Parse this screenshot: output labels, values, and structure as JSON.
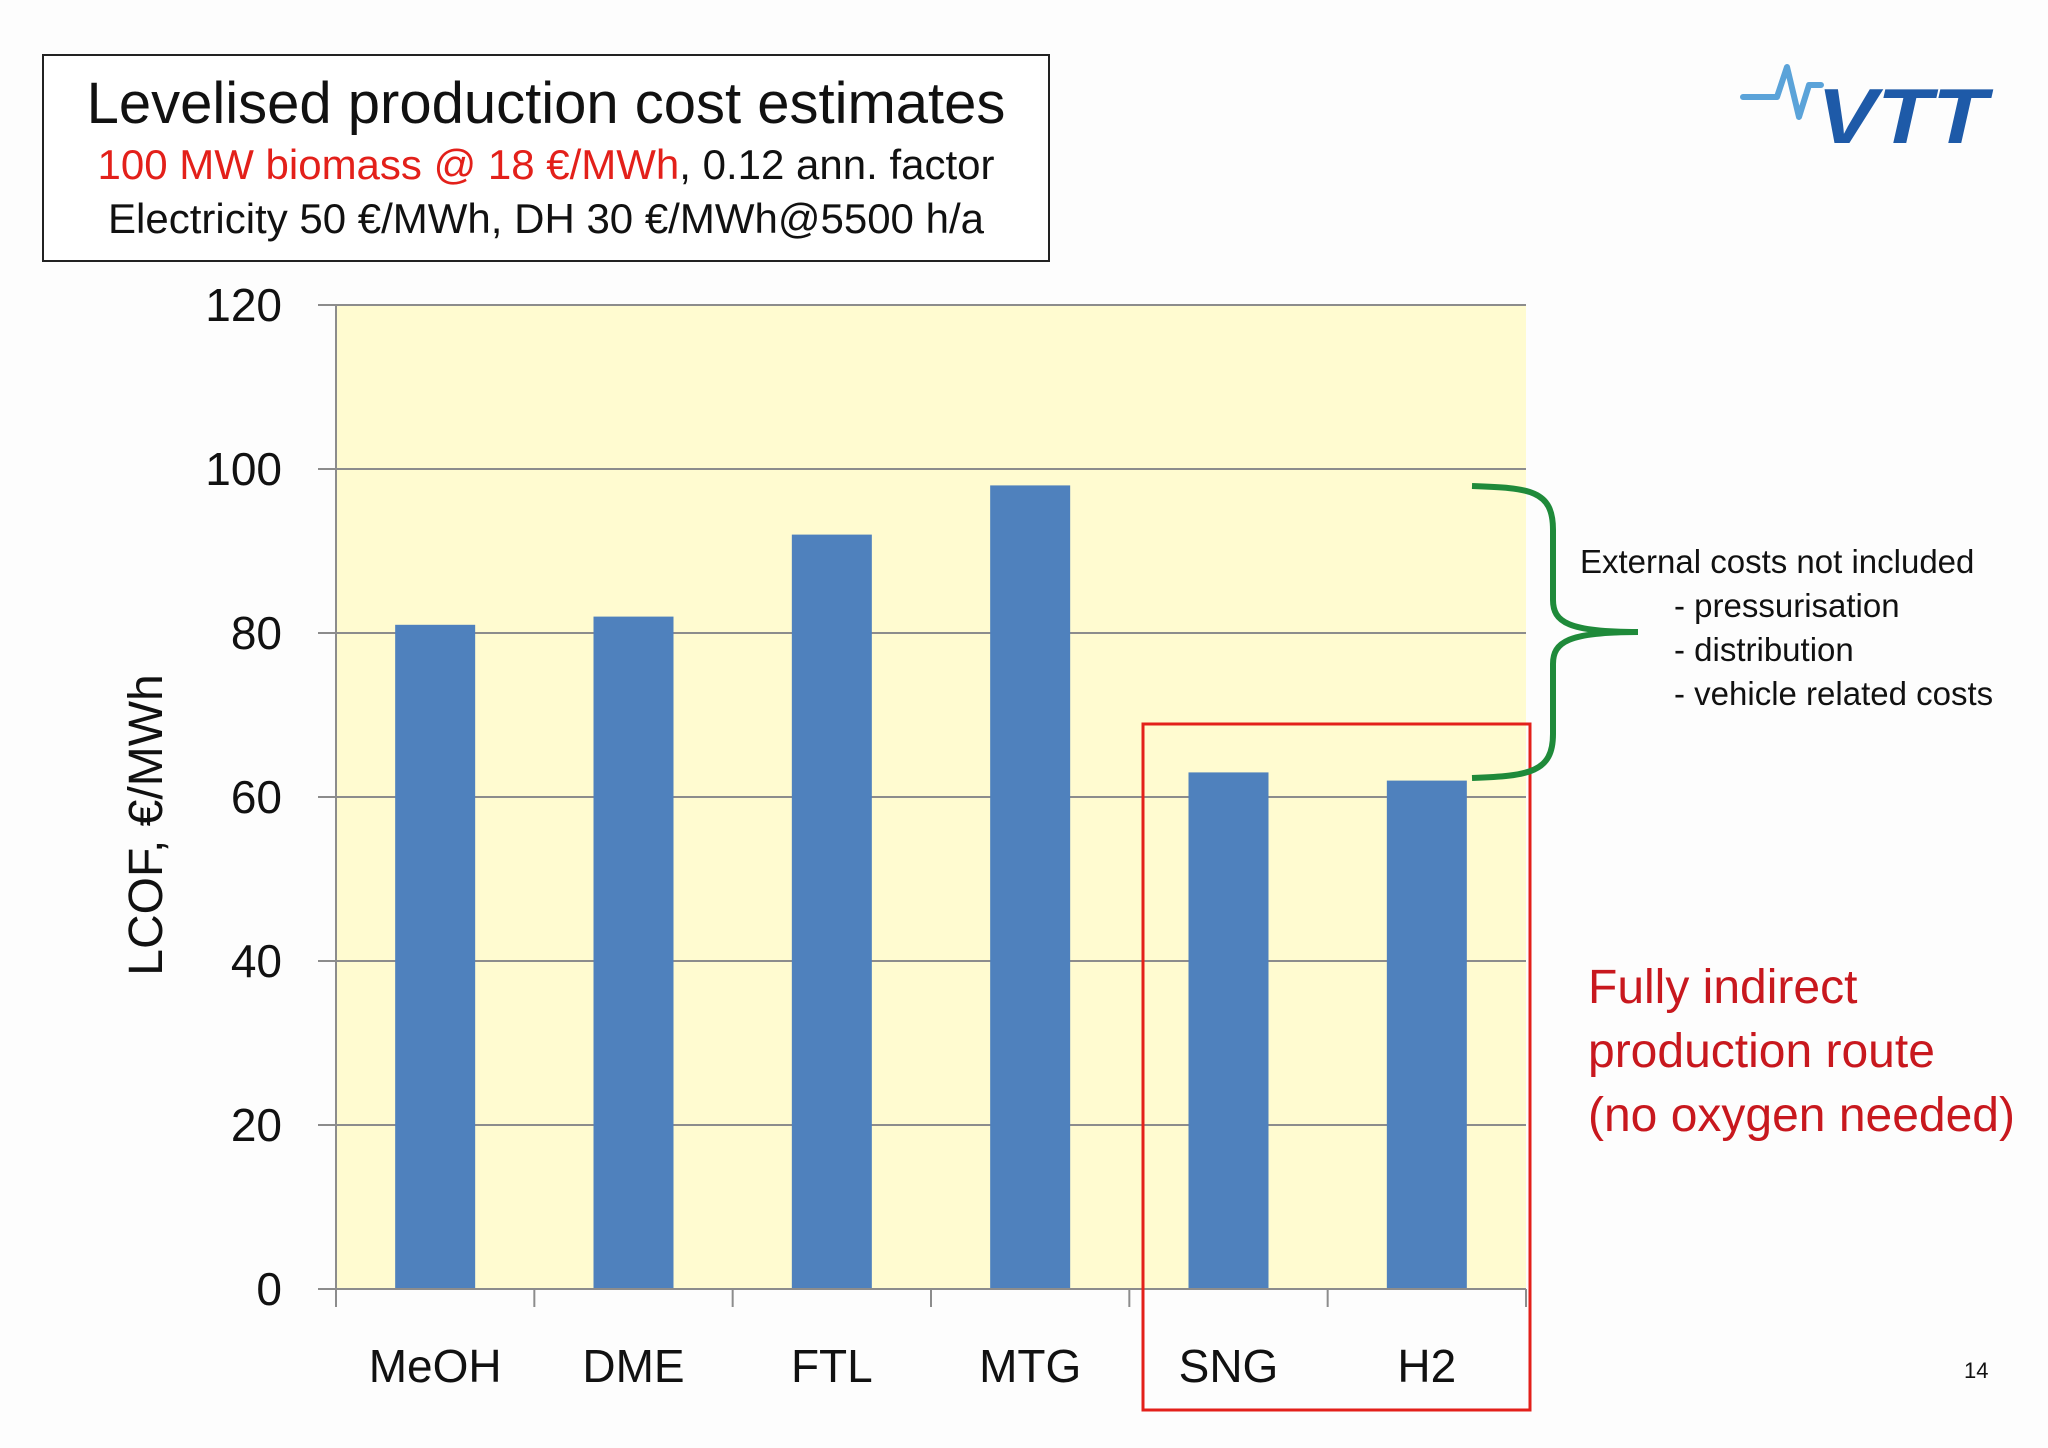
{
  "header": {
    "title": "Levelised production cost estimates",
    "subtitle_red": "100 MW biomass @ 18 €/MWh",
    "subtitle_rest": ", 0.12 ann. factor",
    "subtitle_line2": "Electricity 50 €/MWh, DH 30 €/MWh@5500 h/a"
  },
  "logo": {
    "text": "VTT",
    "color": "#1e5aa8"
  },
  "chart_data": {
    "type": "bar",
    "categories": [
      "MeOH",
      "DME",
      "FTL",
      "MTG",
      "SNG",
      "H2"
    ],
    "values": [
      81,
      82,
      92,
      98,
      63,
      62
    ],
    "ylabel": "LCOF, €/MWh",
    "xlabel": "",
    "ylim": [
      0,
      120
    ],
    "yticks": [
      0,
      20,
      40,
      60,
      80,
      100,
      120
    ],
    "grid": true,
    "bar_color": "#4f81bd",
    "plot_background": "#fffbd0"
  },
  "annotations": {
    "external_title": "External costs not included",
    "external_items": [
      "- pressurisation",
      "- distribution",
      "- vehicle related costs"
    ],
    "indirect_lines": [
      "Fully indirect",
      "production route",
      "(no oxygen needed)"
    ],
    "brace_color": "#1f8a3a",
    "highlight_color": "#e3201a",
    "indirect_color": "#c8181e"
  },
  "page_number": "14"
}
